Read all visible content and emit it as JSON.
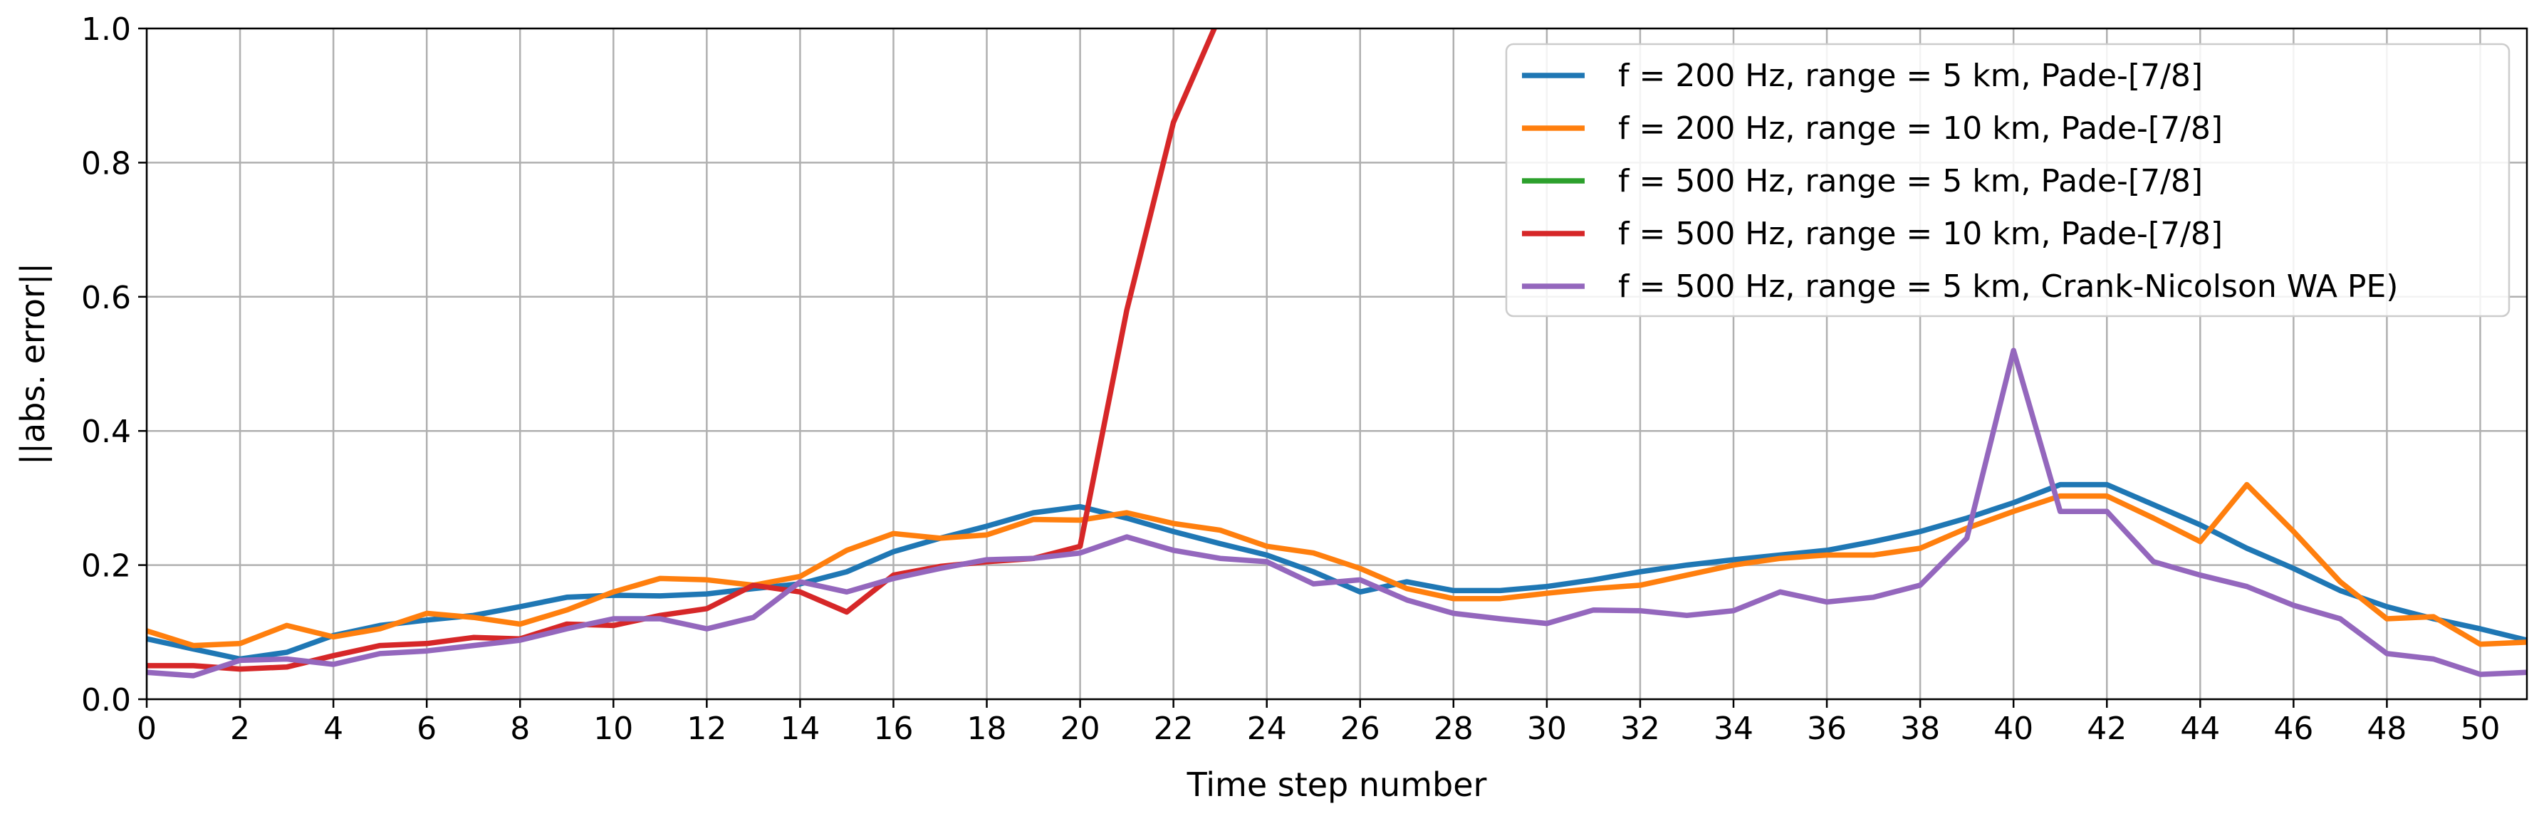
{
  "chart_data": {
    "type": "line",
    "title": "",
    "xlabel": "Time step number",
    "ylabel": "||abs. error||",
    "xlim": [
      0,
      51
    ],
    "ylim": [
      0,
      1
    ],
    "xticks": [
      0,
      2,
      4,
      6,
      8,
      10,
      12,
      14,
      16,
      18,
      20,
      22,
      24,
      26,
      28,
      30,
      32,
      34,
      36,
      38,
      40,
      42,
      44,
      46,
      48,
      50
    ],
    "yticks": [
      0.0,
      0.2,
      0.4,
      0.6,
      0.8,
      1.0
    ],
    "ytick_labels": [
      "0.0",
      "0.2",
      "0.4",
      "0.6",
      "0.8",
      "1.0"
    ],
    "grid": true,
    "legend_position": "top-right",
    "x": [
      0,
      1,
      2,
      3,
      4,
      5,
      6,
      7,
      8,
      9,
      10,
      11,
      12,
      13,
      14,
      15,
      16,
      17,
      18,
      19,
      20,
      21,
      22,
      23,
      24,
      25,
      26,
      27,
      28,
      29,
      30,
      31,
      32,
      33,
      34,
      35,
      36,
      37,
      38,
      39,
      40,
      41,
      42,
      43,
      44,
      45,
      46,
      47,
      48,
      49,
      50,
      51
    ],
    "series": [
      {
        "name": "f = 200 Hz, range = 5 km, Pade-[7/8]",
        "color": "#1f77b4",
        "values": [
          0.09,
          0.075,
          0.06,
          0.07,
          0.095,
          0.11,
          0.118,
          0.125,
          0.138,
          0.152,
          0.155,
          0.154,
          0.157,
          0.165,
          0.172,
          0.19,
          0.22,
          0.24,
          0.258,
          0.278,
          0.287,
          0.27,
          0.25,
          0.232,
          0.215,
          0.19,
          0.16,
          0.175,
          0.162,
          0.162,
          0.168,
          0.178,
          0.19,
          0.2,
          0.208,
          0.215,
          0.222,
          0.235,
          0.25,
          0.27,
          0.293,
          0.32,
          0.32,
          0.29,
          0.26,
          0.225,
          0.195,
          0.162,
          0.138,
          0.12,
          0.105,
          0.088
        ]
      },
      {
        "name": "f = 200 Hz, range = 10 km, Pade-[7/8]",
        "color": "#ff7f0e",
        "values": [
          0.102,
          0.08,
          0.083,
          0.11,
          0.093,
          0.105,
          0.128,
          0.122,
          0.112,
          0.133,
          0.16,
          0.18,
          0.178,
          0.17,
          0.183,
          0.222,
          0.247,
          0.24,
          0.245,
          0.268,
          0.267,
          0.278,
          0.262,
          0.252,
          0.228,
          0.218,
          0.195,
          0.165,
          0.15,
          0.15,
          0.158,
          0.165,
          0.17,
          0.185,
          0.2,
          0.21,
          0.215,
          0.215,
          0.225,
          0.255,
          0.28,
          0.303,
          0.303,
          0.27,
          0.235,
          0.32,
          0.25,
          0.175,
          0.12,
          0.123,
          0.082,
          0.085
        ]
      },
      {
        "name": "f = 500 Hz, range = 5 km, Pade-[7/8]",
        "color": "#2ca02c",
        "values": [
          null,
          null,
          null,
          null,
          null,
          null,
          null,
          null,
          null,
          null,
          null,
          null,
          null,
          null,
          null,
          null,
          null,
          null,
          null,
          null,
          null,
          null,
          null,
          null,
          null,
          null,
          null,
          null,
          null,
          null,
          null,
          null,
          null,
          null,
          null,
          null,
          null,
          null,
          null,
          null,
          null,
          null,
          null,
          null,
          null,
          null,
          null,
          null,
          null,
          null,
          null,
          null
        ]
      },
      {
        "name": "f = 500 Hz, range = 10 km, Pade-[7/8]",
        "color": "#d62728",
        "values": [
          0.05,
          0.05,
          0.045,
          0.048,
          0.065,
          0.08,
          0.083,
          0.092,
          0.09,
          0.112,
          0.11,
          0.125,
          0.135,
          0.17,
          0.16,
          0.13,
          0.185,
          0.198,
          0.205,
          0.21,
          0.228,
          0.58,
          0.86,
          1.02,
          null,
          null,
          null,
          null,
          null,
          null,
          null,
          null,
          null,
          null,
          null,
          null,
          null,
          null,
          null,
          null,
          null,
          null,
          null,
          null,
          null,
          null,
          null,
          null,
          null,
          null,
          null,
          null
        ]
      },
      {
        "name": "f = 500 Hz, range = 5 km, Crank-Nicolson WA PE)",
        "color": "#9467bd",
        "values": [
          0.04,
          0.035,
          0.058,
          0.06,
          0.052,
          0.068,
          0.072,
          0.08,
          0.088,
          0.105,
          0.12,
          0.12,
          0.105,
          0.122,
          0.175,
          0.16,
          0.18,
          0.195,
          0.208,
          0.21,
          0.218,
          0.242,
          0.222,
          0.21,
          0.205,
          0.172,
          0.178,
          0.148,
          0.128,
          0.12,
          0.113,
          0.133,
          0.132,
          0.125,
          0.132,
          0.16,
          0.145,
          0.152,
          0.17,
          0.24,
          0.52,
          0.28,
          0.28,
          0.205,
          0.185,
          0.168,
          0.14,
          0.12,
          0.068,
          0.06,
          0.037,
          0.04
        ]
      }
    ]
  }
}
